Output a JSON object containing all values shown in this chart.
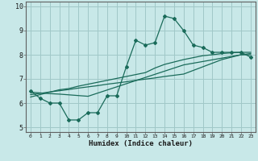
{
  "title": "",
  "xlabel": "Humidex (Indice chaleur)",
  "ylabel": "",
  "background_color": "#c8e8e8",
  "grid_color": "#a0c8c8",
  "line_color": "#1a6b5a",
  "x_data": [
    0,
    1,
    2,
    3,
    4,
    5,
    6,
    7,
    8,
    9,
    10,
    11,
    12,
    13,
    14,
    15,
    16,
    17,
    18,
    19,
    20,
    21,
    22,
    23
  ],
  "main_y": [
    6.5,
    6.2,
    6.0,
    6.0,
    5.3,
    5.3,
    5.6,
    5.6,
    6.3,
    6.3,
    7.5,
    8.6,
    8.4,
    8.5,
    9.6,
    9.5,
    9.0,
    8.4,
    8.3,
    8.1,
    8.1,
    8.1,
    8.1,
    7.9
  ],
  "line1_y": [
    6.45,
    6.42,
    6.39,
    6.37,
    6.34,
    6.31,
    6.28,
    6.41,
    6.54,
    6.67,
    6.8,
    6.93,
    7.06,
    7.19,
    7.32,
    7.45,
    7.58,
    7.65,
    7.72,
    7.79,
    7.86,
    7.93,
    8.0,
    8.0
  ],
  "line2_y": [
    6.35,
    6.4,
    6.46,
    6.51,
    6.56,
    6.62,
    6.67,
    6.72,
    6.78,
    6.83,
    6.88,
    6.94,
    6.99,
    7.04,
    7.1,
    7.15,
    7.2,
    7.35,
    7.5,
    7.65,
    7.8,
    7.9,
    8.0,
    8.05
  ],
  "line3_y": [
    6.25,
    6.35,
    6.45,
    6.55,
    6.6,
    6.7,
    6.78,
    6.86,
    6.94,
    7.02,
    7.1,
    7.18,
    7.26,
    7.45,
    7.6,
    7.7,
    7.8,
    7.88,
    7.96,
    8.0,
    8.05,
    8.08,
    8.1,
    8.1
  ],
  "ylim": [
    4.8,
    10.2
  ],
  "xlim": [
    -0.5,
    23.5
  ],
  "yticks": [
    5,
    6,
    7,
    8,
    9,
    10
  ],
  "xticks": [
    0,
    1,
    2,
    3,
    4,
    5,
    6,
    7,
    8,
    9,
    10,
    11,
    12,
    13,
    14,
    15,
    16,
    17,
    18,
    19,
    20,
    21,
    22,
    23
  ]
}
